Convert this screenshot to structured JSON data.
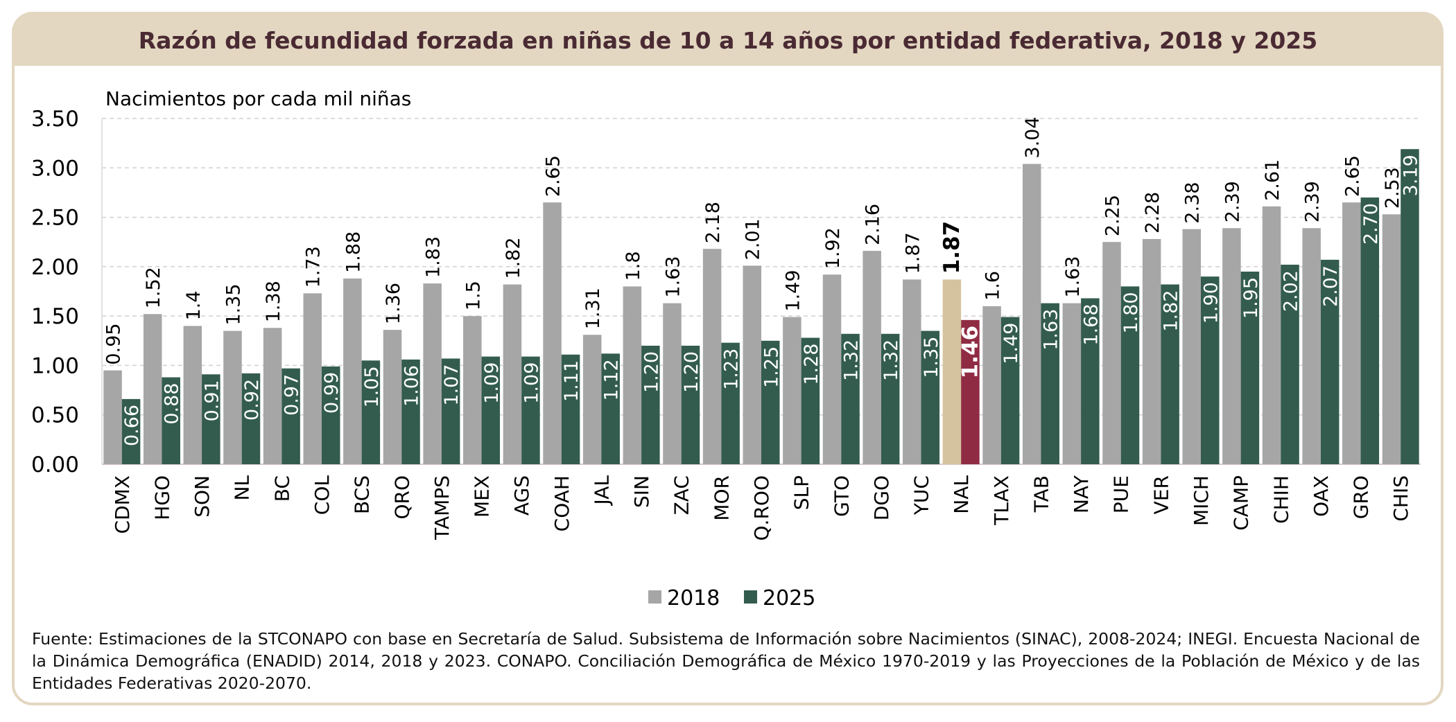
{
  "chart_data": {
    "type": "bar",
    "title": "Razón de fecundidad forzada en niñas de 10 a 14 años por entidad federativa, 2018 y 2025",
    "ylabel": "Nacimientos por cada mil niñas",
    "ylim": [
      0,
      3.5
    ],
    "yticks": [
      "0.00",
      "0.50",
      "1.00",
      "1.50",
      "2.00",
      "2.50",
      "3.00",
      "3.50"
    ],
    "grid": true,
    "legend_position": "bottom",
    "categories": [
      "CDMX",
      "HGO",
      "SON",
      "NL",
      "BC",
      "COL",
      "BCS",
      "QRO",
      "TAMPS",
      "MEX",
      "AGS",
      "COAH",
      "JAL",
      "SIN",
      "ZAC",
      "MOR",
      "Q.ROO",
      "SLP",
      "GTO",
      "DGO",
      "YUC",
      "NAL",
      "TLAX",
      "TAB",
      "NAY",
      "PUE",
      "VER",
      "MICH",
      "CAMP",
      "CHIH",
      "OAX",
      "GRO",
      "CHIS"
    ],
    "series": [
      {
        "name": "2018",
        "color": "#a6a6a6",
        "values": [
          0.95,
          1.52,
          1.4,
          1.35,
          1.38,
          1.73,
          1.88,
          1.36,
          1.83,
          1.5,
          1.82,
          2.65,
          1.31,
          1.8,
          1.63,
          2.18,
          2.01,
          1.49,
          1.92,
          2.16,
          1.87,
          1.87,
          1.6,
          3.04,
          1.63,
          2.25,
          2.28,
          2.38,
          2.39,
          2.61,
          2.39,
          2.65,
          2.53
        ],
        "labels": [
          "0.95",
          "1.52",
          "1.4",
          "1.35",
          "1.38",
          "1.73",
          "1.88",
          "1.36",
          "1.83",
          "1.5",
          "1.82",
          "2.65",
          "1.31",
          "1.8",
          "1.63",
          "2.18",
          "2.01",
          "1.49",
          "1.92",
          "2.16",
          "1.87",
          "1.87",
          "1.6",
          "3.04",
          "1.63",
          "2.25",
          "2.28",
          "2.38",
          "2.39",
          "2.61",
          "2.39",
          "2.65",
          "2.53"
        ]
      },
      {
        "name": "2025",
        "color": "#335c4f",
        "values": [
          0.66,
          0.88,
          0.91,
          0.92,
          0.97,
          0.99,
          1.05,
          1.06,
          1.07,
          1.09,
          1.09,
          1.11,
          1.12,
          1.2,
          1.2,
          1.23,
          1.25,
          1.28,
          1.32,
          1.32,
          1.35,
          1.46,
          1.49,
          1.63,
          1.68,
          1.8,
          1.82,
          1.9,
          1.95,
          2.02,
          2.07,
          2.7,
          3.19
        ],
        "labels": [
          "0.66",
          "0.88",
          "0.91",
          "0.92",
          "0.97",
          "0.99",
          "1.05",
          "1.06",
          "1.07",
          "1.09",
          "1.09",
          "1.11",
          "1.12",
          "1.20",
          "1.20",
          "1.23",
          "1.25",
          "1.28",
          "1.32",
          "1.32",
          "1.35",
          "1.46",
          "1.49",
          "1.63",
          "1.68",
          "1.80",
          "1.82",
          "1.90",
          "1.95",
          "2.02",
          "2.07",
          "2.70",
          "3.19"
        ]
      }
    ],
    "highlight": {
      "category": "NAL",
      "color_2018": "#d5c29f",
      "color_2025": "#8f2c44"
    }
  },
  "colors": {
    "title_band": "#e3d7c1",
    "title_text": "#4a2a33",
    "frame": "#e3d7c1"
  },
  "footnote": "Fuente: Estimaciones de la STCONAPO con base en Secretaría de Salud. Subsistema de Información sobre Nacimientos (SINAC), 2008-2024; INEGI. Encuesta Nacional de la Dinámica Demográfica (ENADID) 2014, 2018 y 2023. CONAPO. Conciliación Demográfica de México 1970-2019 y las Proyecciones de la Población de México y de las Entidades Federativas 2020-2070."
}
